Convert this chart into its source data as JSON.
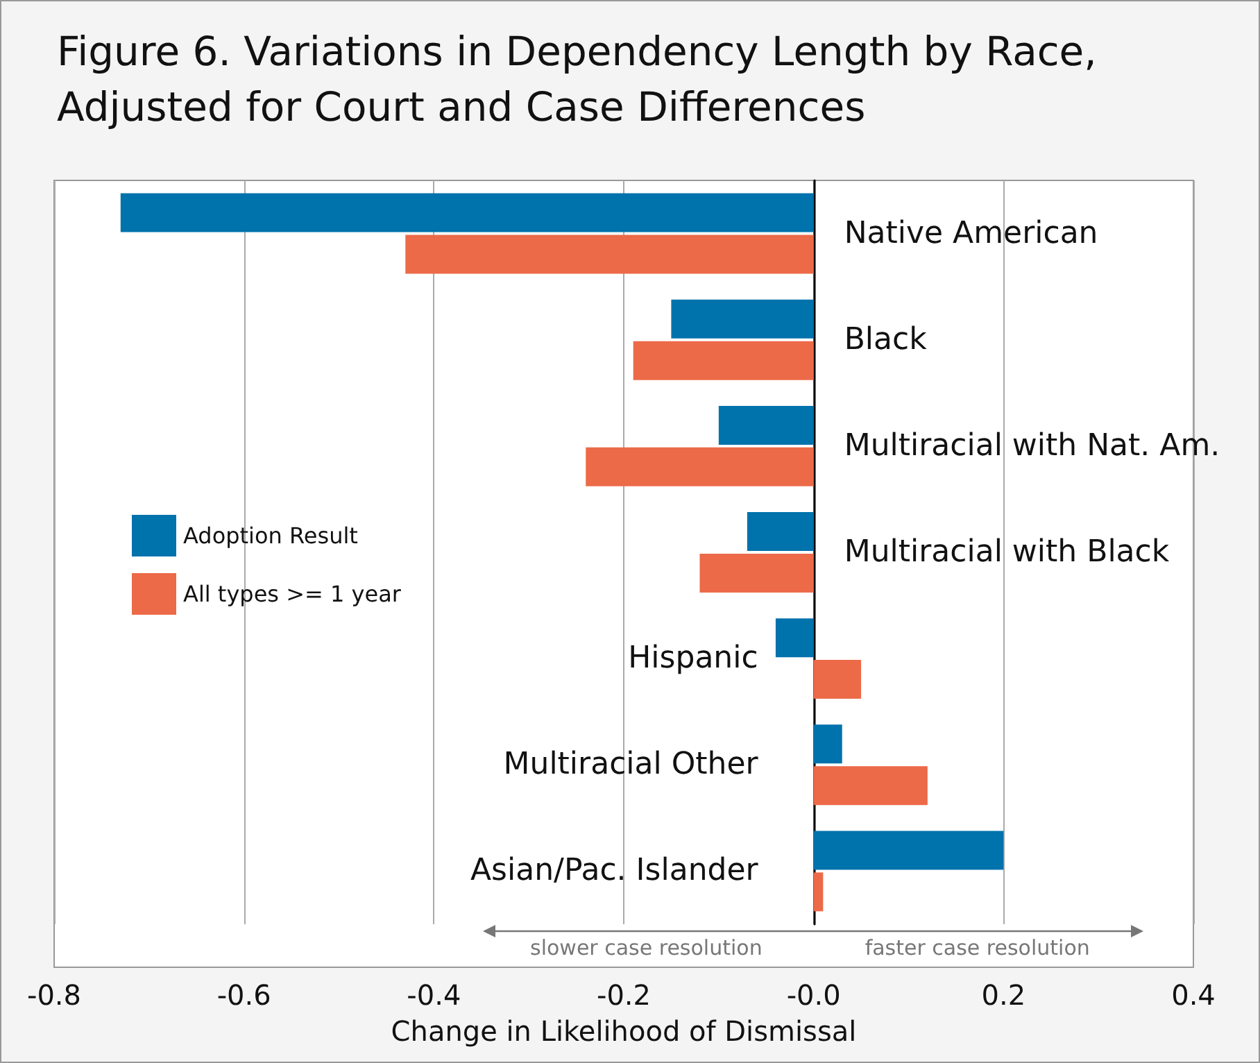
{
  "chart_data": {
    "type": "bar",
    "orientation": "horizontal",
    "title": "Figure 6. Variations in Dependency Length by Race, Adjusted for Court and Case Differences",
    "xlabel": "Change in Likelihood of Dismissal",
    "categories": [
      "Native American",
      "Black",
      "Multiracial with Nat. Am.",
      "Multiracial with Black",
      "Hispanic",
      "Multiracial Other",
      "Asian/Pac. Islander"
    ],
    "series": [
      {
        "name": "Adoption Result",
        "color": "#0072ac",
        "values": [
          -0.73,
          -0.15,
          -0.1,
          -0.07,
          -0.04,
          0.03,
          0.2
        ]
      },
      {
        "name": "All types >= 1 year",
        "color": "#ec6a48",
        "values": [
          -0.43,
          -0.19,
          -0.24,
          -0.12,
          0.05,
          0.12,
          0.01
        ]
      }
    ],
    "xlim": [
      -0.8,
      0.4
    ],
    "xticks": [
      -0.8,
      -0.6,
      -0.4,
      -0.2,
      {
        "value": 0,
        "label": "-0.0"
      },
      0.2,
      0.4
    ],
    "grid": "x",
    "legend": "left",
    "annotations": [
      "slower case resolution",
      "faster case resolution"
    ]
  }
}
